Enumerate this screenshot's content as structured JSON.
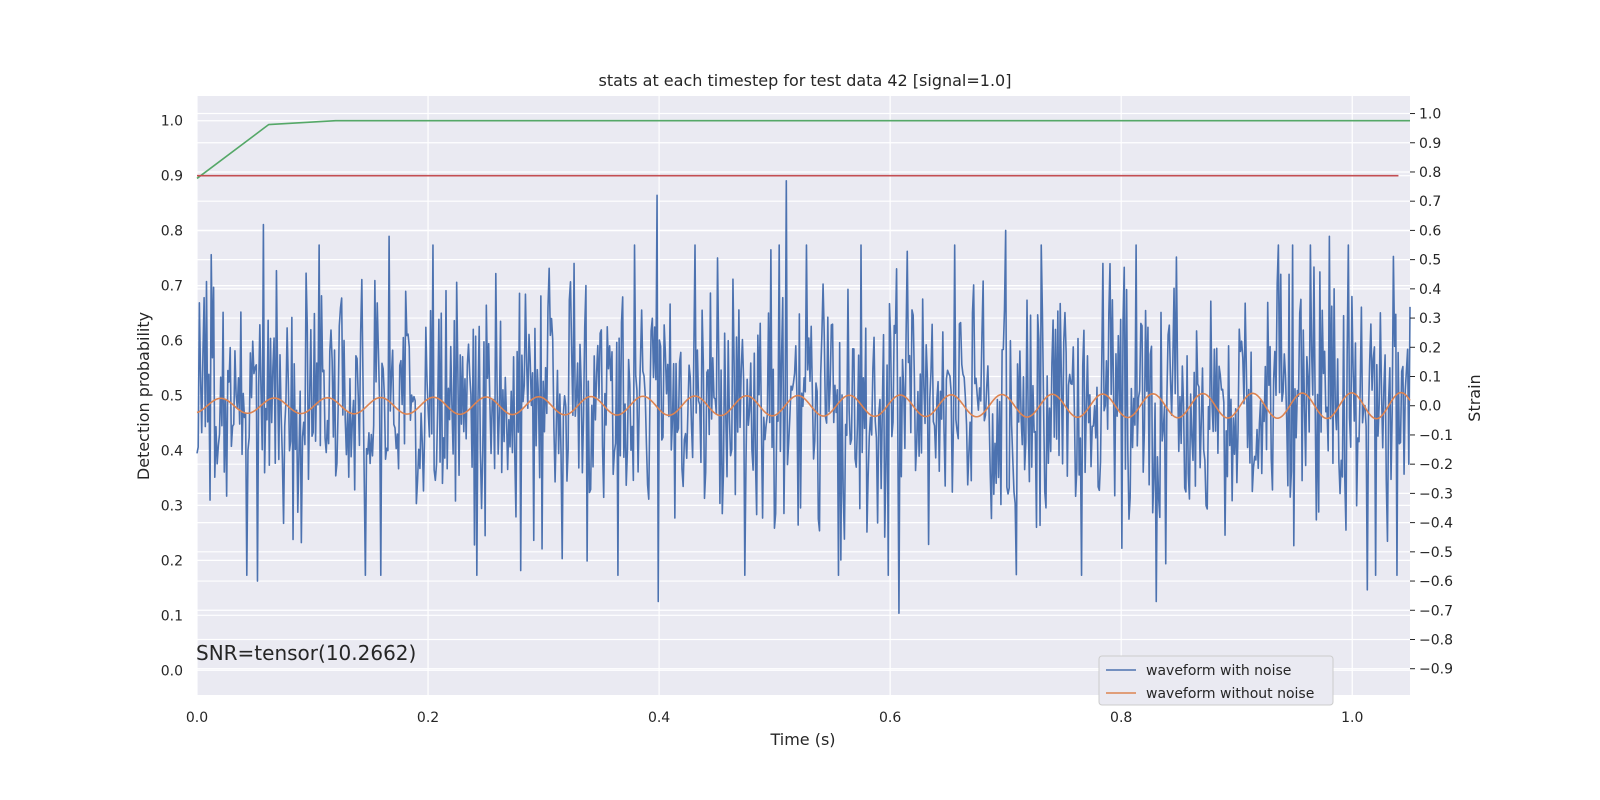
{
  "chart_data": {
    "type": "line",
    "title": "stats at each timestep for test data 42 [signal=1.0]",
    "xlabel": "Time (s)",
    "ylabel_left": "Detection probability",
    "ylabel_right": "Strain",
    "annotation": "SNR=tensor(10.2662)",
    "xlim": [
      0.0,
      1.05
    ],
    "ylim_left": [
      -0.045,
      1.045
    ],
    "ylim_right": [
      -0.99,
      1.06
    ],
    "x_ticks": [
      0.0,
      0.2,
      0.4,
      0.6,
      0.8,
      1.0
    ],
    "x_tick_labels": [
      "0.0",
      "0.2",
      "0.4",
      "0.6",
      "0.8",
      "1.0"
    ],
    "y_ticks_left": [
      0.0,
      0.1,
      0.2,
      0.3,
      0.4,
      0.5,
      0.6,
      0.7,
      0.8,
      0.9,
      1.0
    ],
    "y_tick_labels_left": [
      "0.0",
      "0.1",
      "0.2",
      "0.3",
      "0.4",
      "0.5",
      "0.6",
      "0.7",
      "0.8",
      "0.9",
      "1.0"
    ],
    "y_ticks_right": [
      -0.9,
      -0.8,
      -0.7,
      -0.6,
      -0.5,
      -0.4,
      -0.3,
      -0.2,
      -0.1,
      0.0,
      0.1,
      0.2,
      0.3,
      0.4,
      0.5,
      0.6,
      0.7,
      0.8,
      0.9,
      1.0
    ],
    "y_tick_labels_right": [
      "−0.9",
      "−0.8",
      "−0.7",
      "−0.6",
      "−0.5",
      "−0.4",
      "−0.3",
      "−0.2",
      "−0.1",
      "0.0",
      "0.1",
      "0.2",
      "0.3",
      "0.4",
      "0.5",
      "0.6",
      "0.7",
      "0.8",
      "0.9",
      "1.0"
    ],
    "grid": true,
    "legend_location": "lower right",
    "series": [
      {
        "name": "waveform with noise",
        "axis": "right",
        "color": "#4c72b0",
        "style": "noisy",
        "n_points": 1024,
        "x_range": [
          0.0,
          1.05
        ],
        "mean": 0.0,
        "std": 0.25,
        "extrema": [
          {
            "x": 0.057,
            "y": 0.62
          },
          {
            "x": 0.166,
            "y": 0.58
          },
          {
            "x": 0.398,
            "y": 0.72
          },
          {
            "x": 0.51,
            "y": 0.77
          },
          {
            "x": 0.7,
            "y": 0.6
          },
          {
            "x": 0.98,
            "y": 0.58
          },
          {
            "x": 0.052,
            "y": -0.6
          },
          {
            "x": 0.399,
            "y": -0.67
          },
          {
            "x": 0.608,
            "y": -0.71
          },
          {
            "x": 0.83,
            "y": -0.67
          },
          {
            "x": 1.013,
            "y": -0.63
          }
        ]
      },
      {
        "name": "waveform without noise",
        "axis": "right",
        "color": "#dd8452",
        "style": "chirp",
        "n_points": 1024,
        "x_range": [
          0.0,
          1.05
        ],
        "amp_start": 0.025,
        "amp_end": 0.045,
        "freq_start": 21.5,
        "freq_end": 23.5,
        "phase": -1.2
      },
      {
        "name": "",
        "axis": "left",
        "color": "#55a868",
        "style": "polyline",
        "points": [
          [
            0.0,
            0.895
          ],
          [
            0.062,
            0.993
          ],
          [
            0.12,
            1.0
          ],
          [
            1.05,
            1.0
          ]
        ]
      },
      {
        "name": "",
        "axis": "left",
        "color": "#c44e52",
        "style": "polyline",
        "points": [
          [
            0.0,
            0.9
          ],
          [
            1.04,
            0.9
          ]
        ]
      }
    ]
  }
}
